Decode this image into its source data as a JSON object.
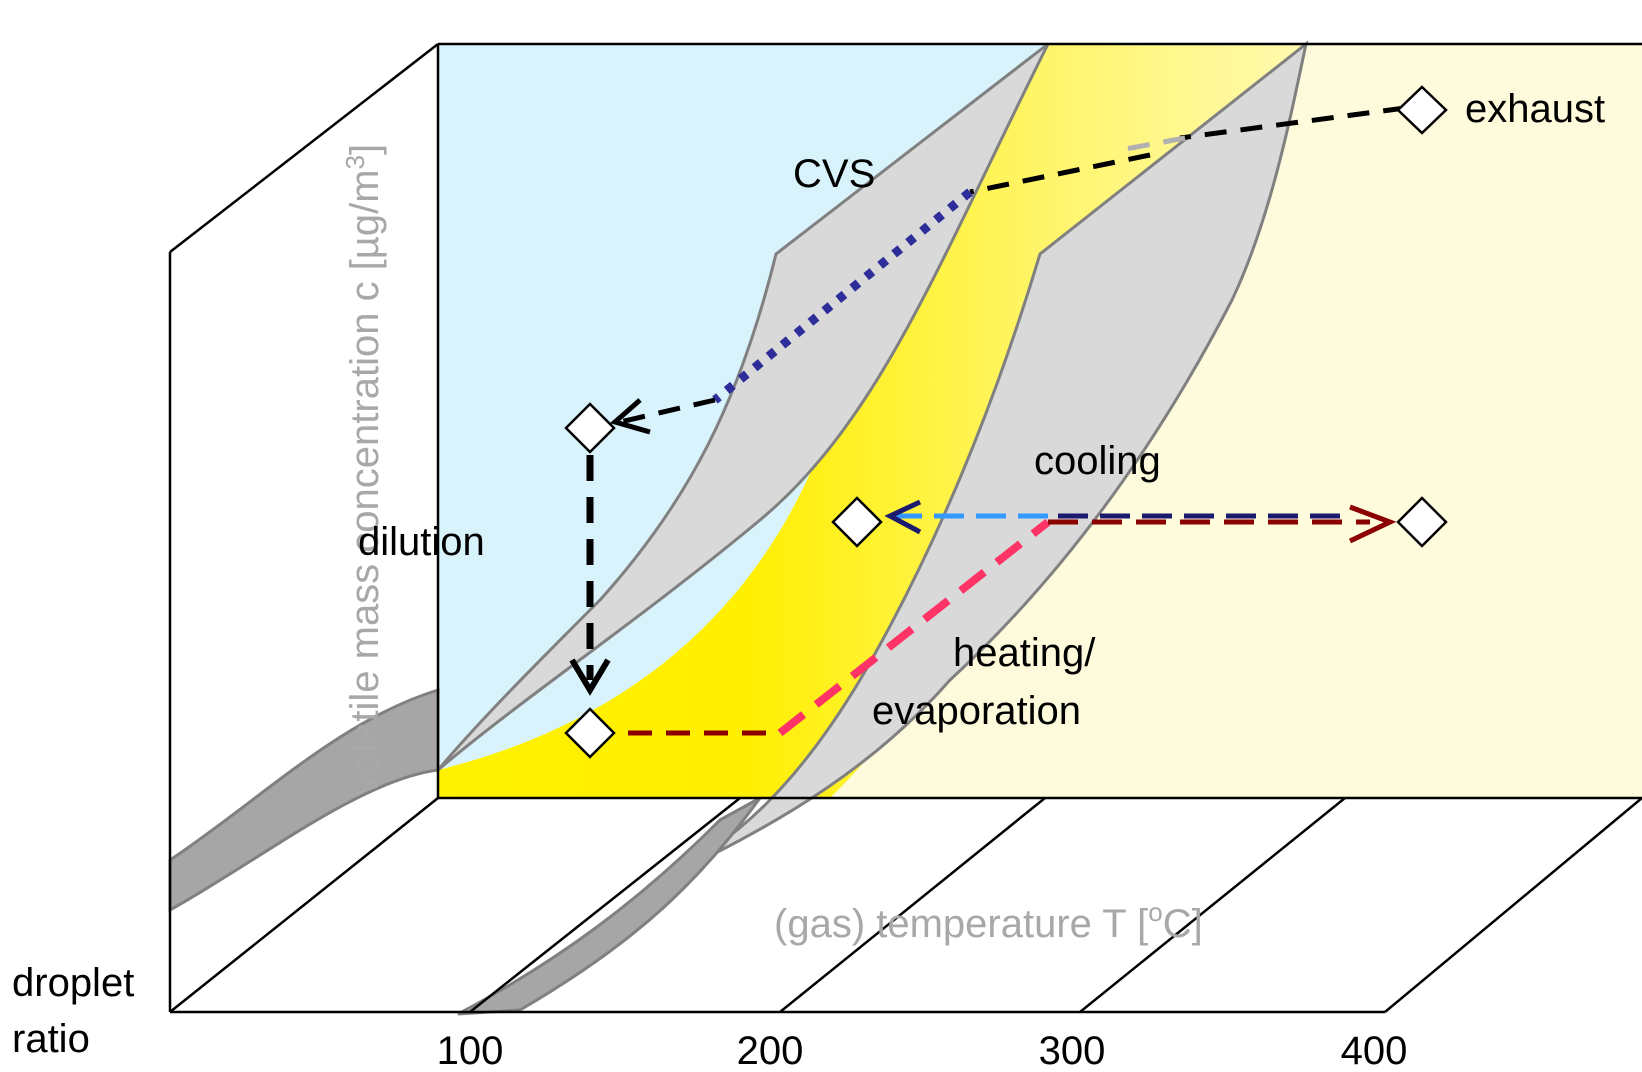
{
  "axes": {
    "y_label": "volatile mass concentration c [µg/m",
    "y_label_sup": "3",
    "y_label_end": "]",
    "x_label": "(gas) temperature T [",
    "x_label_sup": "o",
    "x_label_end": "C]",
    "z_label_line1": "droplet",
    "z_label_line2": "ratio",
    "x_ticks": [
      "100",
      "200",
      "300",
      "400"
    ]
  },
  "labels": {
    "cvs": "CVS",
    "exhaust": "exhaust",
    "cooling": "cooling",
    "dilution": "dilution",
    "heating_line1": "heating/",
    "heating_line2": "evaporation"
  },
  "colors": {
    "liquid_region": "#d9f3fc",
    "vapor_region": "#fefbdc",
    "transition_band": "#ffef00",
    "surface": "#d9d9d9",
    "surface_edge": "#808080",
    "path_black": "#000000",
    "path_navy": "#2e2e9a",
    "path_darkred": "#8b0000",
    "path_pink": "#ff3366",
    "path_blue": "#3399ff"
  }
}
